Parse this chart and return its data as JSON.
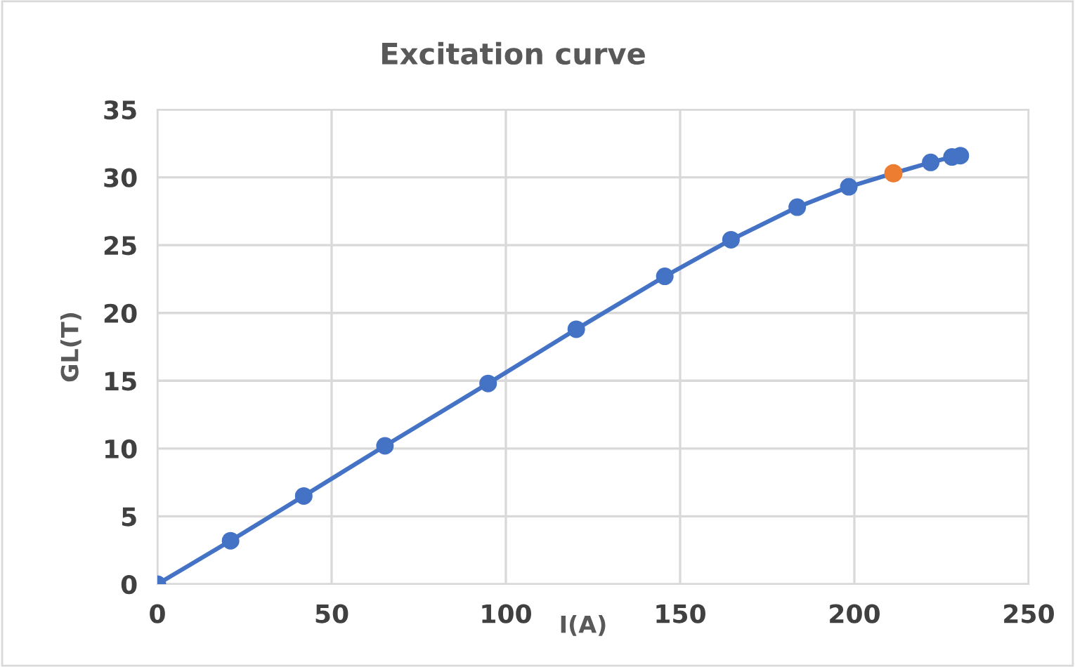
{
  "chart_data": {
    "type": "line",
    "title": "Excitation curve",
    "xlabel": "I(A)",
    "ylabel": "GL(T)",
    "xlim": [
      0,
      250
    ],
    "xticks": [
      0,
      50,
      100,
      150,
      200,
      250
    ],
    "ylim": [
      0,
      35
    ],
    "yticks": [
      0,
      5,
      10,
      15,
      20,
      25,
      30,
      35
    ],
    "grid": true,
    "marker": "circle",
    "line_style": "solid",
    "series": [
      {
        "color": "#4472c4",
        "x": [
          0,
          21.0,
          42.0,
          65.3,
          94.9,
          120.2,
          145.6,
          164.6,
          183.6,
          198.4,
          211.2,
          221.9,
          228.0,
          230.4
        ],
        "values": [
          0.0,
          3.2,
          6.5,
          10.2,
          14.8,
          18.8,
          22.7,
          25.4,
          27.8,
          29.3,
          30.3,
          31.1,
          31.5,
          31.6
        ]
      },
      {
        "type": "scatter",
        "color": "#ed7d31",
        "x": [
          211.2
        ],
        "values": [
          30.3
        ]
      }
    ]
  }
}
